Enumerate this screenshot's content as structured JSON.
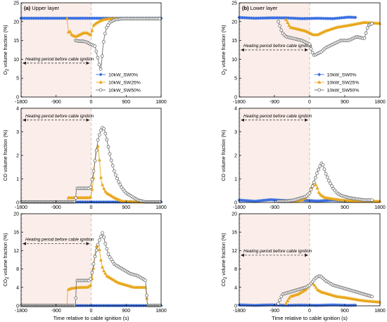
{
  "chart_data": [
    {
      "id": "a_o2",
      "type": "line",
      "panel_label": "(a) Upper layer",
      "xlabel": "",
      "ylabel": "O2 volume fraction (%)",
      "xlim": [
        -1800,
        1800
      ],
      "ylim": [
        0,
        25
      ],
      "xticks": [
        "-1800",
        "-900",
        "0",
        "900",
        "1800"
      ],
      "yticks": [
        "0",
        "5",
        "10",
        "15",
        "20",
        "25"
      ],
      "annotation": "Heating period before cable ignition",
      "annotation_y": 9,
      "legend": [
        "10kW_SW0%",
        "10kW_SW25%",
        "10kW_SW50%"
      ],
      "series": [
        {
          "name": "10kW_SW0%",
          "x": [
            -1800,
            -1200,
            -600,
            0,
            600,
            1200,
            1800
          ],
          "y": [
            20.9,
            20.9,
            20.9,
            20.9,
            20.9,
            20.9,
            20.9
          ]
        },
        {
          "name": "10kW_SW25%",
          "x": [
            -620,
            -580,
            -550,
            -500,
            -400,
            -300,
            -200,
            -100,
            -20,
            0,
            60,
            120,
            200,
            300,
            500,
            800,
            1200,
            1800
          ],
          "y": [
            20.8,
            17,
            17.5,
            16.5,
            16,
            16.5,
            17,
            17,
            16.5,
            16.5,
            19,
            19.5,
            20,
            20.5,
            20.8,
            20.8,
            20.8,
            20.8
          ]
        },
        {
          "name": "10kW_SW50%",
          "x": [
            -400,
            -300,
            -200,
            -100,
            -20,
            100,
            180,
            240,
            270,
            300,
            340,
            400,
            480,
            600,
            800,
            1000,
            1200,
            1800
          ],
          "y": [
            15,
            14.8,
            14.8,
            14.5,
            14,
            13.5,
            10,
            7,
            9,
            13,
            16,
            18.5,
            19.8,
            20.5,
            20.8,
            20.8,
            20.8,
            20.8
          ]
        }
      ]
    },
    {
      "id": "b_o2",
      "type": "line",
      "panel_label": "(b) Lower layer",
      "xlabel": "",
      "ylabel": "O2 volume fraction (%)",
      "xlim": [
        -1800,
        1800
      ],
      "ylim": [
        0,
        25
      ],
      "xticks": [
        "-1800",
        "-900",
        "0",
        "900",
        "1800"
      ],
      "yticks": [
        "0",
        "5",
        "10",
        "15",
        "20",
        "25"
      ],
      "annotation": "Heating period before cable ignition",
      "annotation_y": 12.5,
      "legend": [
        "10kW_SW0%",
        "10kW_SW25%",
        "10kW_SW50%"
      ],
      "series": [
        {
          "name": "10kW_SW0%",
          "x": [
            -1800,
            -1400,
            -1000,
            -600,
            -200,
            200,
            600,
            1000,
            1200
          ],
          "y": [
            21.1,
            20.9,
            21,
            21,
            20.8,
            20.9,
            20.8,
            21.2,
            21.1
          ]
        },
        {
          "name": "10kW_SW25%",
          "x": [
            -600,
            -500,
            -300,
            -100,
            0,
            100,
            200,
            400,
            700,
            1000,
            1400,
            1800
          ],
          "y": [
            20.5,
            18.5,
            18,
            17.5,
            17,
            16.5,
            16.5,
            17.5,
            18.5,
            19,
            19.8,
            19.5
          ]
        },
        {
          "name": "10kW_SW50%",
          "x": [
            -800,
            -700,
            -600,
            -400,
            -200,
            -100,
            0,
            60,
            120,
            200,
            300,
            400,
            600,
            800,
            1000,
            1200,
            1400,
            1500,
            1600
          ],
          "y": [
            20,
            17,
            16,
            15.5,
            15,
            14.5,
            14,
            12,
            11,
            11.5,
            12,
            13,
            14,
            15,
            15,
            16,
            15.5,
            19,
            19.5
          ]
        }
      ]
    },
    {
      "id": "a_co",
      "type": "line",
      "panel_label": "",
      "xlabel": "",
      "ylabel": "CO volume fraction (%)",
      "xlim": [
        -1800,
        1800
      ],
      "ylim": [
        0,
        4
      ],
      "xticks": [
        "-1800",
        "-900",
        "0",
        "900",
        "1800"
      ],
      "yticks": [
        "0",
        "1",
        "2",
        "3",
        "4"
      ],
      "annotation": "Heating period before cable ignition",
      "annotation_y": 3.5,
      "legend": [],
      "series": [
        {
          "name": "10kW_SW0%",
          "x": [
            -1800,
            -900,
            0,
            900,
            1800
          ],
          "y": [
            0.02,
            0.02,
            0.02,
            0.02,
            0.02
          ]
        },
        {
          "name": "10kW_SW25%",
          "x": [
            -1800,
            -620,
            -600,
            -300,
            -50,
            0,
            60,
            120,
            180,
            220,
            260,
            300,
            350,
            400,
            500,
            600,
            800,
            1200,
            1800
          ],
          "y": [
            0.02,
            0.02,
            0.2,
            0.2,
            0.2,
            0.25,
            1,
            2.2,
            2.4,
            1.7,
            0.9,
            0.7,
            0.5,
            0.4,
            0.3,
            0.2,
            0.05,
            0.02,
            0.02
          ]
        },
        {
          "name": "10kW_SW50%",
          "x": [
            -1800,
            -400,
            -380,
            -200,
            -20,
            50,
            120,
            180,
            260,
            300,
            340,
            400,
            450,
            500,
            600,
            700,
            800,
            900,
            1000,
            1100,
            1200,
            1400,
            1800
          ],
          "y": [
            0.02,
            0.02,
            0.6,
            0.6,
            0.6,
            1.2,
            2,
            2.7,
            3.1,
            3.2,
            3.1,
            2.7,
            2.3,
            1.9,
            1.3,
            0.9,
            0.6,
            0.4,
            0.3,
            0.2,
            0.1,
            0.02,
            0.02
          ]
        }
      ]
    },
    {
      "id": "b_co",
      "type": "line",
      "panel_label": "",
      "xlabel": "",
      "ylabel": "CO volume fraction (%)",
      "xlim": [
        -1800,
        1800
      ],
      "ylim": [
        0,
        4
      ],
      "xticks": [
        "-1800",
        "-900",
        "0",
        "900",
        "1800"
      ],
      "yticks": [
        "0",
        "1",
        "2",
        "3",
        "4"
      ],
      "annotation": "Heating period before cable ignition",
      "annotation_y": 3.5,
      "legend": [],
      "series": [
        {
          "name": "10kW_SW0%",
          "x": [
            -1800,
            -1400,
            -1000,
            -600,
            -200,
            200,
            600,
            1000,
            1200
          ],
          "y": [
            0.1,
            0.05,
            0.12,
            0.08,
            0.1,
            0.06,
            0.1,
            0.05,
            0.08
          ]
        },
        {
          "name": "10kW_SW25%",
          "x": [
            -600,
            -400,
            -200,
            -100,
            0,
            60,
            120,
            180,
            240,
            300,
            400,
            600,
            800,
            1200,
            1800
          ],
          "y": [
            0.05,
            0.05,
            0.1,
            0.2,
            0.4,
            0.7,
            0.85,
            0.7,
            0.4,
            0.3,
            0.2,
            0.15,
            0.1,
            0.05,
            0.05
          ]
        },
        {
          "name": "10kW_SW50%",
          "x": [
            -800,
            -600,
            -400,
            -200,
            -100,
            0,
            100,
            200,
            280,
            320,
            360,
            420,
            500,
            600,
            700,
            800,
            1000,
            1200,
            1400,
            1600
          ],
          "y": [
            0.05,
            0.05,
            0.1,
            0.2,
            0.25,
            0.4,
            0.8,
            1.3,
            1.6,
            1.7,
            1.5,
            1.2,
            0.9,
            0.6,
            0.4,
            0.3,
            0.2,
            0.15,
            0.1,
            0.1
          ]
        }
      ]
    },
    {
      "id": "a_co2",
      "type": "line",
      "panel_label": "",
      "xlabel": "Time relative to cable ignition (s)",
      "ylabel": "CO2 volume fraction (%)",
      "xlim": [
        -1800,
        1800
      ],
      "ylim": [
        0,
        20
      ],
      "xticks": [
        "-1800",
        "-900",
        "0",
        "900",
        "1800"
      ],
      "yticks": [
        "0",
        "4",
        "8",
        "12",
        "16",
        "20"
      ],
      "annotation": "Heating period before cable ignition",
      "annotation_y": 13.5,
      "legend": [],
      "series": [
        {
          "name": "10kW_SW0%",
          "x": [
            -1800,
            -900,
            0,
            900,
            1800
          ],
          "y": [
            0.05,
            0.05,
            0.05,
            0.05,
            0.05
          ]
        },
        {
          "name": "10kW_SW25%",
          "x": [
            -1800,
            -620,
            -600,
            -500,
            -300,
            -100,
            0,
            60,
            100,
            150,
            200,
            250,
            300,
            400,
            500,
            700,
            900,
            1100,
            1300,
            1400,
            1450,
            1800
          ],
          "y": [
            0.05,
            0.05,
            3.5,
            3.8,
            4,
            4,
            4.5,
            8,
            11,
            13.5,
            13,
            10,
            8,
            6.5,
            6,
            5,
            4.5,
            4,
            4,
            4,
            0.05,
            0.05
          ]
        },
        {
          "name": "10kW_SW50%",
          "x": [
            -1800,
            -400,
            -380,
            -200,
            -50,
            0,
            80,
            150,
            200,
            250,
            300,
            350,
            450,
            600,
            800,
            1000,
            1200,
            1300,
            1400,
            1450,
            1800
          ],
          "y": [
            0.05,
            0.05,
            5.5,
            5.5,
            5.5,
            6,
            10,
            12.5,
            14,
            15,
            16,
            14,
            11,
            9,
            8,
            7,
            6.5,
            6,
            5.5,
            0.05,
            0.05
          ]
        }
      ]
    },
    {
      "id": "b_co2",
      "type": "line",
      "panel_label": "",
      "xlabel": "Time relative to cable ignition (s)",
      "ylabel": "CO2 volume fraction (%)",
      "xlim": [
        -1800,
        1800
      ],
      "ylim": [
        0,
        20
      ],
      "xticks": [
        "-1800",
        "-900",
        "0",
        "900",
        "1800"
      ],
      "yticks": [
        "0",
        "4",
        "8",
        "12",
        "16",
        "20"
      ],
      "annotation": "Heating period before cable ignition",
      "annotation_y": 11,
      "legend": [],
      "series": [
        {
          "name": "10kW_SW0%",
          "x": [
            -1800,
            -1400,
            -1000,
            -600,
            -200,
            200,
            600,
            1000,
            1200
          ],
          "y": [
            0.2,
            0.1,
            0.2,
            0.1,
            0.15,
            0.1,
            0.2,
            0.1,
            0.15
          ]
        },
        {
          "name": "10kW_SW25%",
          "x": [
            -600,
            -500,
            -300,
            -100,
            0,
            60,
            120,
            200,
            300,
            500,
            700,
            900,
            1100,
            1300,
            1500,
            1800
          ],
          "y": [
            0.5,
            2,
            2.5,
            3.5,
            4.5,
            5,
            4.5,
            3.5,
            3,
            2.5,
            2,
            1.8,
            1.5,
            1.2,
            1,
            0.8
          ]
        },
        {
          "name": "10kW_SW50%",
          "x": [
            -800,
            -700,
            -500,
            -300,
            -100,
            0,
            100,
            150,
            200,
            250,
            300,
            400,
            500,
            600,
            800,
            1000,
            1200,
            1400,
            1600
          ],
          "y": [
            0.5,
            2.5,
            3,
            3.5,
            4,
            4.5,
            5.5,
            6,
            6.3,
            6.5,
            6.3,
            5.5,
            5,
            4.5,
            4,
            3.5,
            3,
            2.5,
            2
          ]
        }
      ]
    }
  ],
  "colors": {
    "SW0": "#3a6fe0",
    "SW25": "#e8a81c",
    "SW50": "#6d6d6d",
    "heating_shade": "#fbeeea",
    "ignition_line": "#b8b8b8"
  }
}
